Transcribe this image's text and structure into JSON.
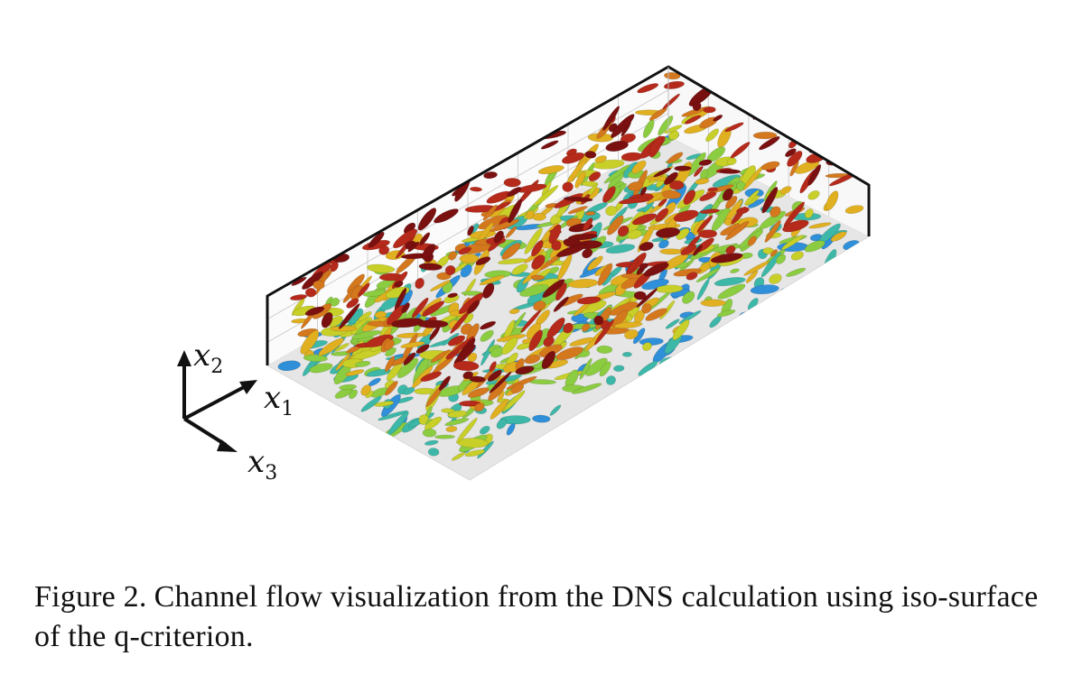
{
  "figure": {
    "axes": [
      {
        "symbol": "x",
        "subscript": "2"
      },
      {
        "symbol": "x",
        "subscript": "1"
      },
      {
        "symbol": "x",
        "subscript": "3"
      }
    ],
    "colors": {
      "frame": "#111111",
      "grid": "#cfcfcf",
      "floor": "#e6e6e6",
      "vortex_palette": [
        "#7a1010",
        "#b52a1a",
        "#d4781e",
        "#e0b020",
        "#c8cf28",
        "#8ccc40",
        "#3db8a8",
        "#2f8fd8"
      ]
    }
  },
  "caption": {
    "label": "Figure 2.",
    "text": "Channel flow visualization from the DNS calculation using iso-surface of the q-criterion."
  }
}
